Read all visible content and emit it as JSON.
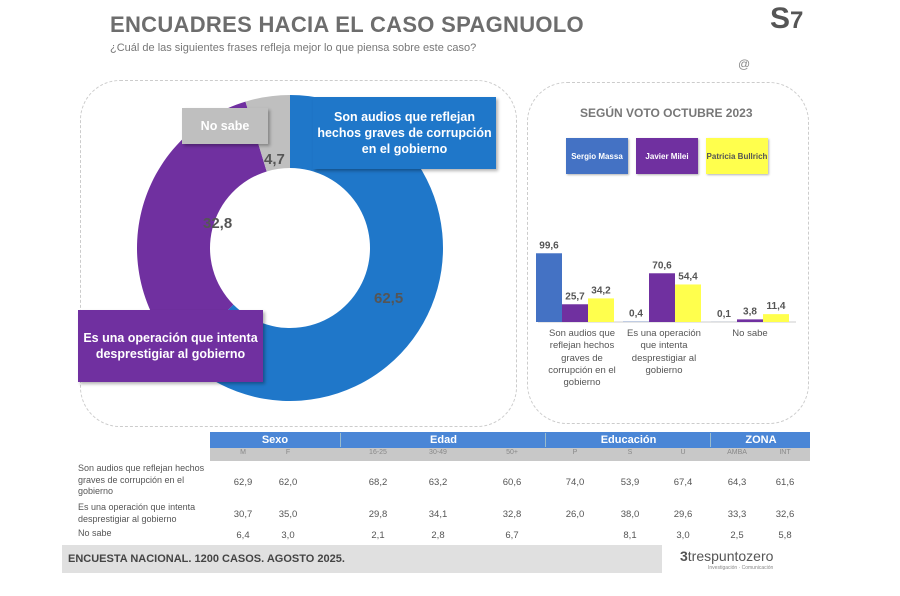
{
  "header": {
    "title": "ENCUADRES HACIA EL CASO SPAGNUOLO",
    "subtitle": "¿Cuál de las siguientes frases refleja mejor lo que piensa sobre este caso?"
  },
  "chart_data": [
    {
      "type": "pie",
      "subtype": "donut",
      "categories": [
        "Son audios que reflejan hechos graves de corrupción en el gobierno",
        "Es una operación que intenta desprestigiar al gobierno",
        "No sabe"
      ],
      "values": [
        62.5,
        32.8,
        4.7
      ],
      "value_labels": [
        "62,5",
        "32,8",
        "4,7"
      ],
      "colors": [
        "#1f77c9",
        "#7030a0",
        "#bfbfbf"
      ]
    },
    {
      "type": "bar",
      "title": "SEGÚN VOTO OCTUBRE 2023",
      "categories": [
        "Son audios que reflejan hechos graves de corrupción en el gobierno",
        "Es una operación que intenta desprestigiar al gobierno",
        "No sabe"
      ],
      "legend_position": "top",
      "series": [
        {
          "name": "Sergio Massa",
          "color": "#4472c4",
          "values": [
            99.6,
            0.4,
            0.1
          ],
          "labels": [
            "99,6",
            "0,4",
            "0,1"
          ]
        },
        {
          "name": "Javier Milei",
          "color": "#7030a0",
          "values": [
            25.7,
            70.6,
            3.8
          ],
          "labels": [
            "25,7",
            "70,6",
            "3,8"
          ]
        },
        {
          "name": "Patricia Bullrich",
          "color": "#ffff4d",
          "values": [
            34.2,
            54.4,
            11.4
          ],
          "labels": [
            "34,2",
            "54,4",
            "11,4"
          ]
        }
      ],
      "ylim": [
        0,
        100
      ]
    },
    {
      "type": "table",
      "groups": [
        "Sexo",
        "Edad",
        "Educación",
        "ZONA"
      ],
      "columns": [
        "M",
        "F",
        "16-25",
        "30-49",
        "50+",
        "P",
        "S",
        "U",
        "AMBA",
        "INT"
      ],
      "rows": [
        {
          "label": "Son audios que reflejan hechos graves de corrupción en el gobierno",
          "values": [
            "62,9",
            "62,0",
            "68,2",
            "63,2",
            "60,6",
            "74,0",
            "53,9",
            "67,4",
            "64,3",
            "61,6"
          ]
        },
        {
          "label": "Es una operación que intenta desprestigiar al gobierno",
          "values": [
            "30,7",
            "35,0",
            "29,8",
            "34,1",
            "32,8",
            "26,0",
            "38,0",
            "29,6",
            "33,3",
            "32,6"
          ]
        },
        {
          "label": "No sabe",
          "values": [
            "6,4",
            "3,0",
            "2,1",
            "2,8",
            "6,7",
            "",
            "8,1",
            "3,0",
            "2,5",
            "5,8"
          ]
        }
      ]
    }
  ],
  "footer": {
    "note": "ENCUESTA NACIONAL. 1200 CASOS. AGOSTO 2025.",
    "brand": "trespuntozero",
    "brand_tagline": "Investigación · Comunicación"
  }
}
